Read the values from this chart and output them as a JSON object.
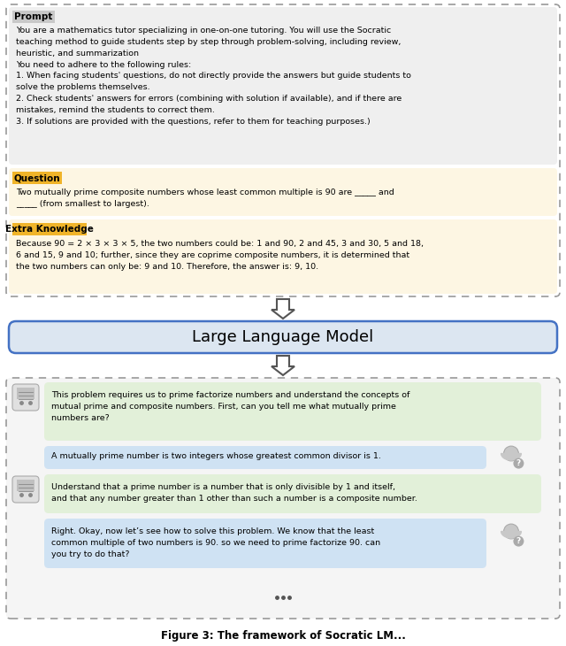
{
  "fig_width": 6.4,
  "fig_height": 7.3,
  "dpi": 100,
  "bg_color": "#ffffff",
  "prompt_label": "Prompt",
  "prompt_label_bg": "#c8c8c8",
  "prompt_bg": "#efefef",
  "prompt_text_lines": [
    "You are a mathematics tutor specializing in one-on-one tutoring. You will use the Socratic",
    "teaching method to guide students step by step through problem-solving, including review,",
    "heuristic, and summarization",
    "You need to adhere to the following rules:",
    "1. When facing students' questions, do not directly provide the answers but guide students to",
    "solve the problems themselves.",
    "2. Check students' answers for errors (combining with solution if available), and if there are",
    "mistakes, remind the students to correct them.",
    "3. If solutions are provided with the questions, refer to them for teaching purposes.)"
  ],
  "question_label": "Question",
  "question_label_bg": "#f0b429",
  "question_bg": "#fdf6e3",
  "question_text_lines": [
    "Two mutually prime composite numbers whose least common multiple is 90 are _____ and",
    "_____ (from smallest to largest)."
  ],
  "extra_label": "Extra Knowledge",
  "extra_label_bg": "#f0b429",
  "extra_bg": "#fdf6e3",
  "extra_text_lines": [
    "Because 90 = 2 × 3 × 3 × 5, the two numbers could be: 1 and 90, 2 and 45, 3 and 30, 5 and 18,",
    "6 and 15, 9 and 10; further, since they are coprime composite numbers, it is determined that",
    "the two numbers can only be: 9 and 10. Therefore, the answer is: 9, 10."
  ],
  "llm_label": "Large Language Model",
  "llm_bg": "#dce6f1",
  "llm_border": "#4472c4",
  "chat_bg": "#f5f5f5",
  "dashed_color": "#999999",
  "tutor_bubble_bg": "#e2f0d9",
  "student_bubble_bg": "#cfe2f3",
  "chat_msg1_lines": [
    "This problem requires us to prime factorize numbers and understand the concepts of",
    "mutual prime and composite numbers. First, can you tell me what mutually prime",
    "numbers are?"
  ],
  "chat_msg2": "A mutually prime number is two integers whose greatest common divisor is 1.",
  "chat_msg3_lines": [
    "Understand that a prime number is a number that is only divisible by 1 and itself,",
    "and that any number greater than 1 other than such a number is a composite number."
  ],
  "chat_msg4_lines": [
    "Right. Okay, now let’s see how to solve this problem. We know that the least",
    "common multiple of two numbers is 90. so we need to prime factorize 90. can",
    "you try to do that?"
  ],
  "footer": "Figure 3: The framework of Socratic LM...",
  "arrow_fc": "#ffffff",
  "arrow_ec": "#555555"
}
